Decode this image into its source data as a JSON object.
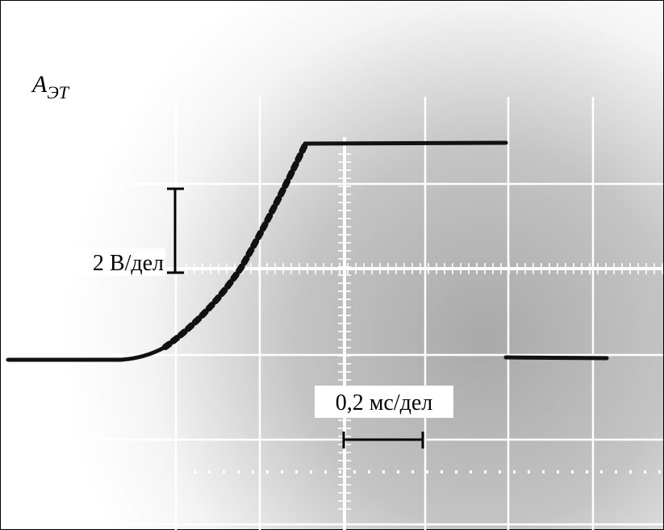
{
  "label": {
    "symbol": "A",
    "subscript": "ЭТ"
  },
  "scale_labels": {
    "vertical": "2 В/дел",
    "horizontal": "0,2 мс/дел"
  }
}
